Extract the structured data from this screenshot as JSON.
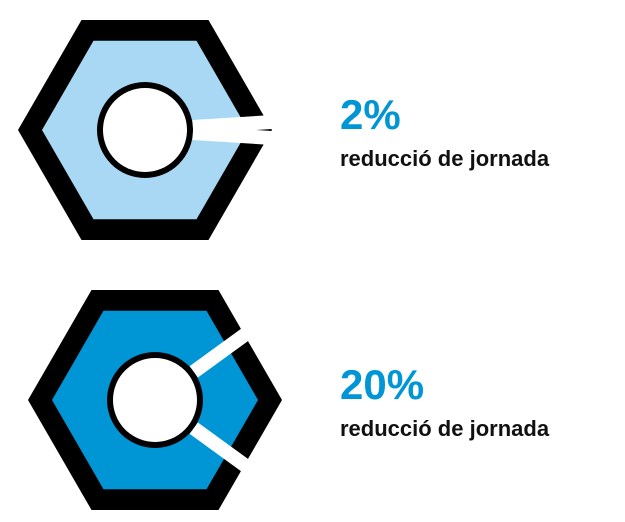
{
  "chart_data": [
    {
      "type": "pie",
      "values": [
        2
      ],
      "value_labels": [
        "2%"
      ],
      "label": "reducció de jornada",
      "color": "#a8d8f4"
    },
    {
      "type": "pie",
      "values": [
        20
      ],
      "value_labels": [
        "20%"
      ],
      "label": "reducció de jornada",
      "color": "#0096d6"
    }
  ]
}
